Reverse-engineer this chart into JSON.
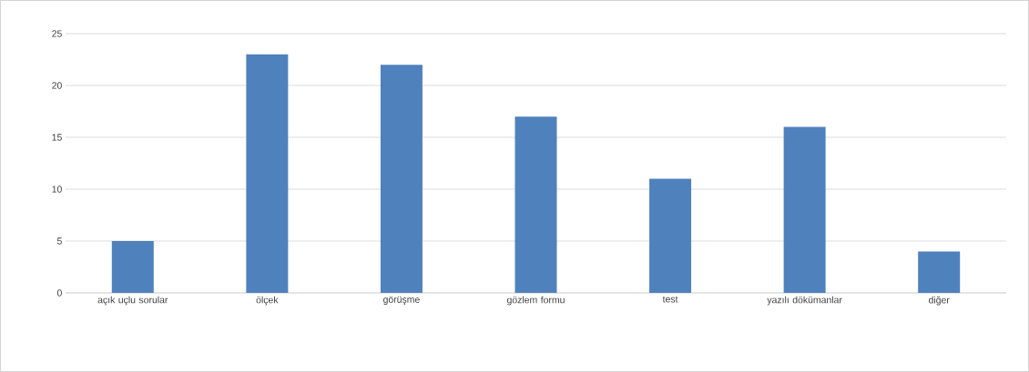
{
  "chart_data": {
    "type": "bar",
    "categories": [
      "açık uçlu sorular",
      "ölçek",
      "görüşme",
      "gözlem formu",
      "test",
      "yazılı dökümanlar",
      "diğer"
    ],
    "values": [
      5,
      23,
      22,
      17,
      11,
      16,
      4
    ],
    "color": "#4f81bd",
    "ylim": [
      0,
      25
    ],
    "yticks": [
      0,
      5,
      10,
      15,
      20,
      25
    ],
    "grid": "y"
  }
}
